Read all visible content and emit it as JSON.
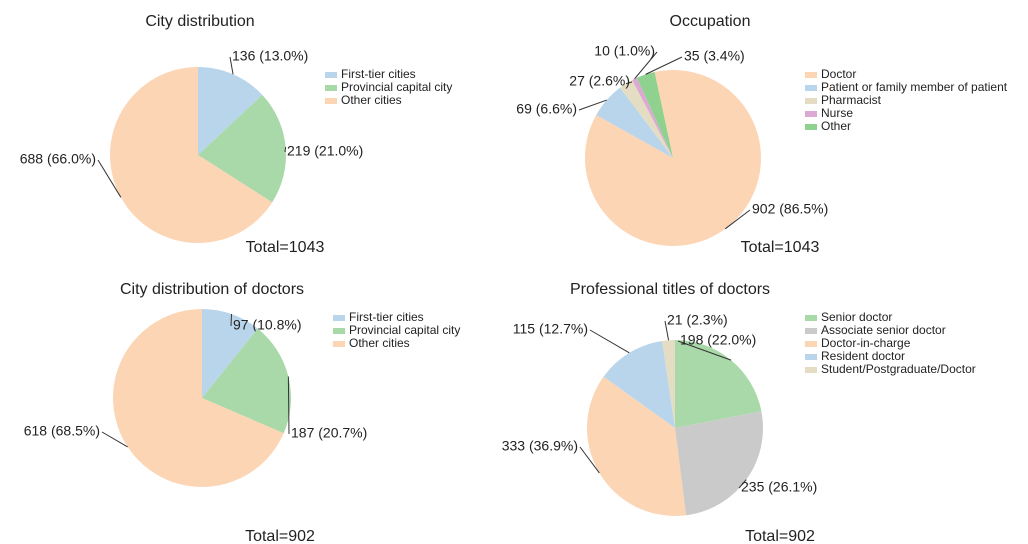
{
  "chart_data": [
    {
      "type": "pie",
      "title": "City distribution",
      "annotation": "Total=1043",
      "categories": [
        "First-tier cities",
        "Provincial capital city",
        "Other cities"
      ],
      "values": [
        136,
        219,
        688
      ],
      "value_labels": [
        "136 (13.0%)",
        "219 (21.0%)",
        "688 (66.0%)"
      ],
      "colors": [
        "#b9d5ec",
        "#a9d9a9",
        "#fcd5b5"
      ]
    },
    {
      "type": "pie",
      "title": "Occupation",
      "annotation": "Total=1043",
      "categories": [
        "Doctor",
        "Patient or family member of patient",
        "Pharmacist",
        "Nurse",
        "Other"
      ],
      "values": [
        902,
        69,
        27,
        10,
        35
      ],
      "value_labels": [
        "902 (86.5%)",
        "69 (6.6%)",
        "27 (2.6%)",
        "10 (1.0%)",
        "35 (3.4%)"
      ],
      "colors": [
        "#fcd5b5",
        "#b9d5ec",
        "#e4ddc3",
        "#dba9d3",
        "#8fd18f"
      ]
    },
    {
      "type": "pie",
      "title": "City distribution of doctors",
      "annotation": "Total=902",
      "categories": [
        "First-tier cities",
        "Provincial capital city",
        "Other cities"
      ],
      "values": [
        97,
        187,
        618
      ],
      "value_labels": [
        "97 (10.8%)",
        "187 (20.7%)",
        "618 (68.5%)"
      ],
      "colors": [
        "#b9d5ec",
        "#a9d9a9",
        "#fcd5b5"
      ]
    },
    {
      "type": "pie",
      "title": "Professional titles of doctors",
      "annotation": "Total=902",
      "categories": [
        "Senior doctor",
        "Associate senior doctor",
        "Doctor-in-charge",
        "Resident doctor",
        "Student/Postgraduate/Doctor"
      ],
      "values": [
        198,
        235,
        333,
        115,
        21
      ],
      "value_labels": [
        "198 (22.0%)",
        "235 (26.1%)",
        "333 (36.9%)",
        "115 (12.7%)",
        "21 (2.3%)"
      ],
      "colors": [
        "#a9d9a9",
        "#cacaca",
        "#fcd5b5",
        "#b9d5ec",
        "#e4ddc3"
      ]
    }
  ]
}
